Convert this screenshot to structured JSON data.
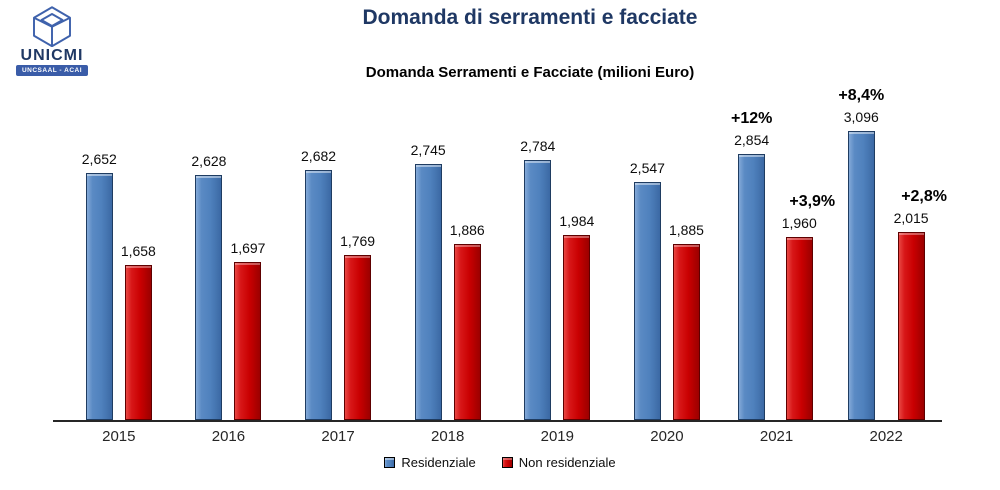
{
  "logo": {
    "name": "UNICMI",
    "sub": "UNCSAAL - ACAI",
    "color": "#1F3864",
    "band_color": "#3A5CA8"
  },
  "title": "Domanda di serramenti e facciate",
  "title_color": "#1F3864",
  "chart_data": {
    "type": "bar",
    "title": "Domanda Serramenti e Facciate (milioni Euro)",
    "categories": [
      "2015",
      "2016",
      "2017",
      "2018",
      "2019",
      "2020",
      "2021",
      "2022"
    ],
    "series": [
      {
        "name": "Residenziale",
        "color": "#4F81BD",
        "values": [
          2652,
          2628,
          2682,
          2745,
          2784,
          2547,
          2854,
          3096
        ],
        "labels": [
          "2,652",
          "2,628",
          "2,682",
          "2,745",
          "2,784",
          "2,547",
          "2,854",
          "3,096"
        ],
        "annotations": [
          "",
          "",
          "",
          "",
          "",
          "",
          "+12%",
          "+8,4%"
        ]
      },
      {
        "name": "Non residenziale",
        "color": "#CC0000",
        "values": [
          1658,
          1697,
          1769,
          1886,
          1984,
          1885,
          1960,
          2015
        ],
        "labels": [
          "1,658",
          "1,697",
          "1,769",
          "1,886",
          "1,984",
          "1,885",
          "1,960",
          "2,015"
        ],
        "annotations": [
          "",
          "",
          "",
          "",
          "",
          "",
          "+3,9%",
          "+2,8%"
        ]
      }
    ],
    "ylim": [
      0,
      3300
    ],
    "xlabel": "",
    "ylabel": "",
    "grid": false,
    "value_labels": true,
    "legend_position": "bottom"
  },
  "legend": {
    "items": [
      {
        "label": "Residenziale",
        "color": "#4F81BD"
      },
      {
        "label": "Non residenziale",
        "color": "#CC0000"
      }
    ]
  }
}
